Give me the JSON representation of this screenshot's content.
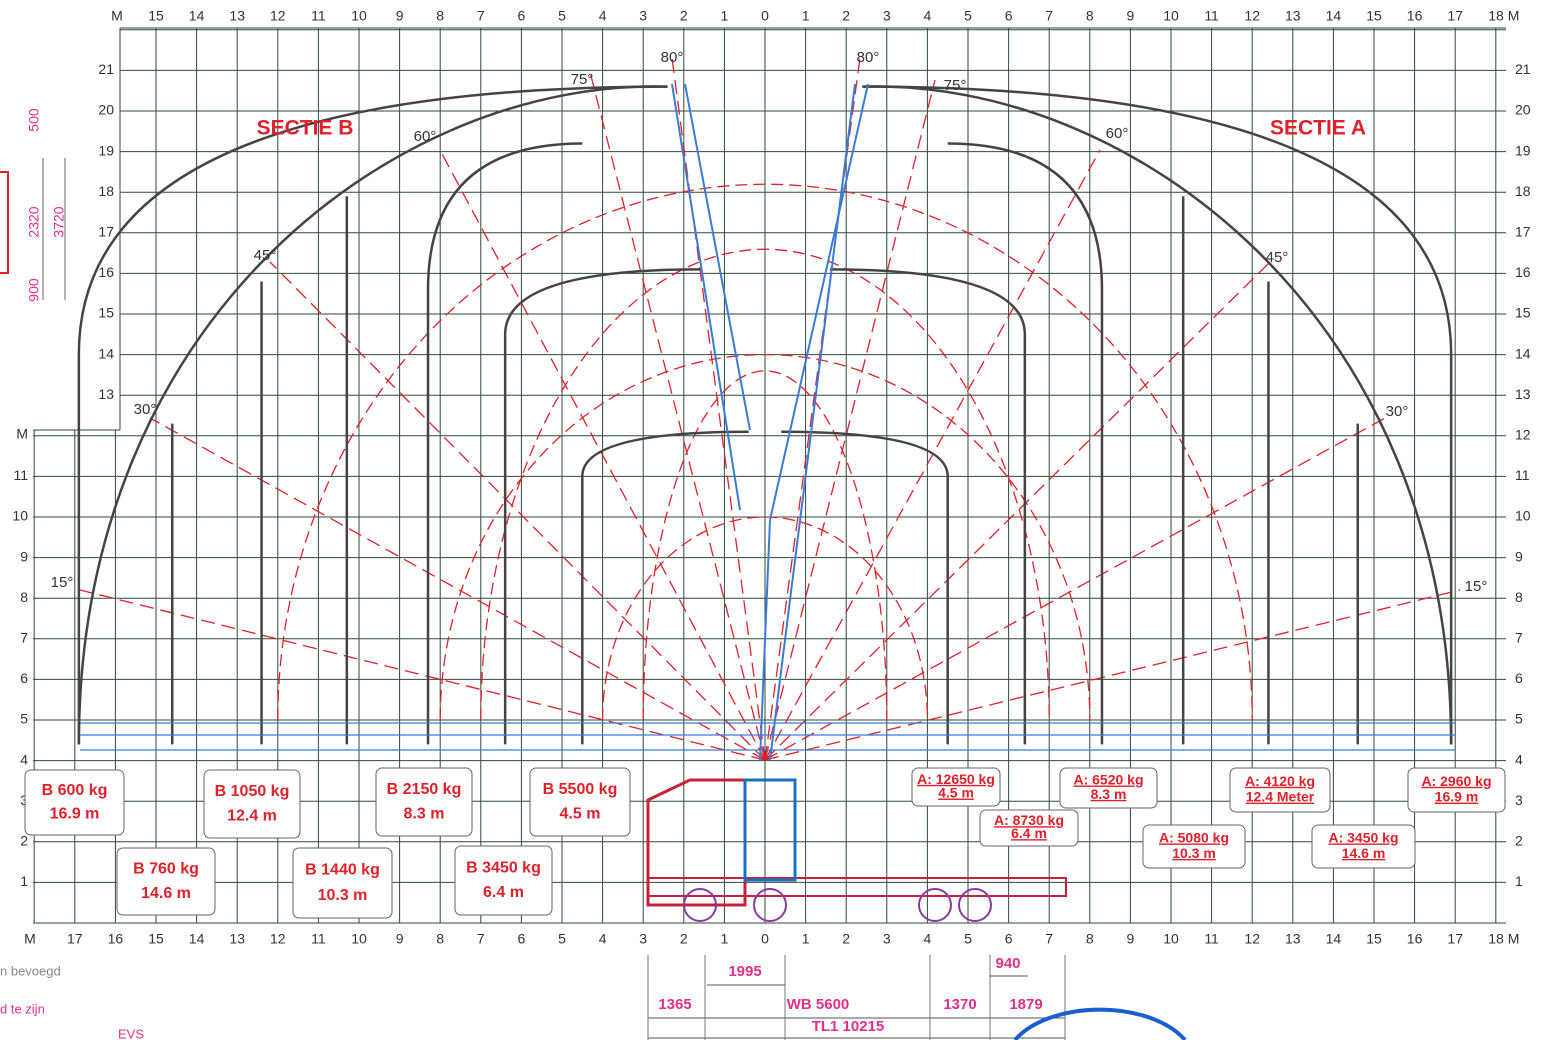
{
  "top_axis": [
    "M",
    "15",
    "14",
    "13",
    "12",
    "11",
    "10",
    "9",
    "8",
    "7",
    "6",
    "5",
    "4",
    "3",
    "2",
    "1",
    "0",
    "1",
    "2",
    "3",
    "4",
    "5",
    "6",
    "7",
    "8",
    "9",
    "10",
    "11",
    "12",
    "13",
    "14",
    "15",
    "16",
    "17",
    "18 M"
  ],
  "bottom_axis": [
    "M",
    "17",
    "16",
    "15",
    "14",
    "13",
    "12",
    "11",
    "10",
    "9",
    "8",
    "7",
    "6",
    "5",
    "4",
    "3",
    "2",
    "1",
    "0",
    "1",
    "2",
    "3",
    "4",
    "5",
    "6",
    "7",
    "8",
    "9",
    "10",
    "11",
    "12",
    "13",
    "14",
    "15",
    "16",
    "17",
    "18 M"
  ],
  "left_axis_upper": [
    "21",
    "20",
    "19",
    "18",
    "17",
    "16",
    "15",
    "14",
    "13"
  ],
  "left_axis_lower": [
    "M",
    "11",
    "10",
    "9",
    "8",
    "7",
    "6",
    "5",
    "4",
    "3",
    "2",
    "1"
  ],
  "right_axis": [
    "21",
    "20",
    "19",
    "18",
    "17",
    "16",
    "15",
    "14",
    "13",
    "12",
    "11",
    "10",
    "9",
    "8",
    "7",
    "6",
    "5",
    "4",
    "3",
    "2",
    "1"
  ],
  "sections": [
    "SECTIE B",
    "SECTIE A"
  ],
  "angles_left": [
    "80°",
    "75°",
    "60°",
    "45°",
    "30°",
    "15°"
  ],
  "angles_right": [
    "80°",
    "75°",
    "60°",
    "45°",
    "30°",
    "15°"
  ],
  "loads_b": [
    {
      "load": "B 600 kg",
      "reach": "16.9 m"
    },
    {
      "load": "B 760 kg",
      "reach": "14.6 m"
    },
    {
      "load": "B 1050 kg",
      "reach": "12.4 m"
    },
    {
      "load": "B 1440 kg",
      "reach": "10.3 m"
    },
    {
      "load": "B 2150 kg",
      "reach": "8.3 m"
    },
    {
      "load": "B 3450 kg",
      "reach": "6.4 m"
    },
    {
      "load": "B 5500 kg",
      "reach": "4.5 m"
    }
  ],
  "loads_a": [
    {
      "load": "A: 12650 kg",
      "reach": "4.5 m"
    },
    {
      "load": "A: 8730 kg",
      "reach": "6.4 m"
    },
    {
      "load": "A: 6520 kg",
      "reach": "8.3 m"
    },
    {
      "load": "A: 5080 kg",
      "reach": "10.3 m"
    },
    {
      "load": "A: 4120 kg",
      "reach": "12.4 Meter"
    },
    {
      "load": "A: 3450 kg",
      "reach": "14.6 m"
    },
    {
      "load": "A: 2960 kg",
      "reach": "16.9 m"
    }
  ],
  "side_dims": [
    "500",
    "2320",
    "3720",
    "900"
  ],
  "truck_dims": [
    "1995",
    "940",
    "1365",
    "WB 5600",
    "1370",
    "1879",
    "TL1 10215"
  ],
  "notes": [
    "n bevoegd",
    "d te zijn",
    "EVS"
  ]
}
